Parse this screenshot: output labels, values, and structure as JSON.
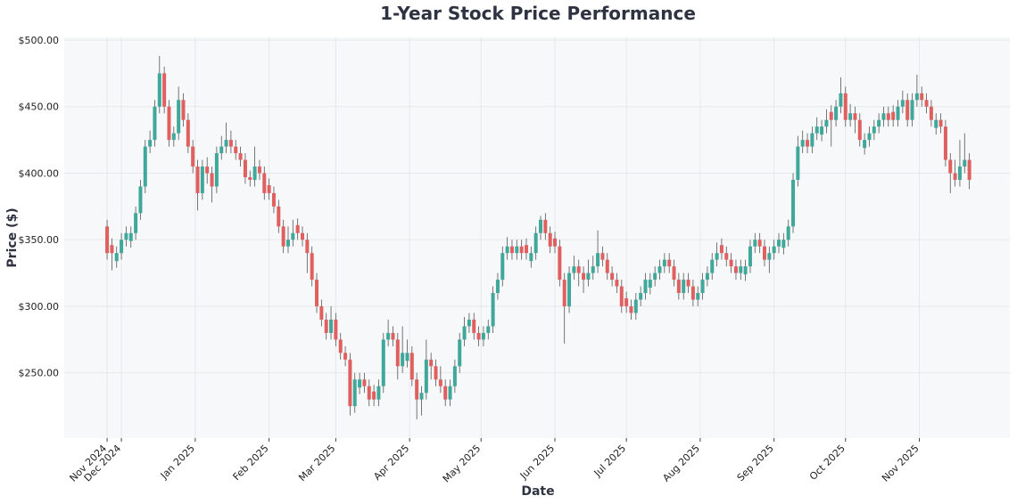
{
  "chart_data": {
    "type": "candlestick",
    "title": "1-Year Stock Price Performance",
    "x_label": "Date",
    "y_label": "Price ($)",
    "up_color": "#3fa89b",
    "down_color": "#e0605f",
    "grid": true,
    "xlim": [
      -24,
      373
    ],
    "xticks": [
      {
        "value": -6,
        "label": "Nov 2024"
      },
      {
        "value": 0,
        "label": "Dec 2024"
      },
      {
        "value": 31,
        "label": "Jan 2025"
      },
      {
        "value": 62,
        "label": "Feb 2025"
      },
      {
        "value": 90,
        "label": "Mar 2025"
      },
      {
        "value": 121,
        "label": "Apr 2025"
      },
      {
        "value": 151,
        "label": "May 2025"
      },
      {
        "value": 182,
        "label": "Jun 2025"
      },
      {
        "value": 212,
        "label": "Jul 2025"
      },
      {
        "value": 243,
        "label": "Aug 2025"
      },
      {
        "value": 274,
        "label": "Sep 2025"
      },
      {
        "value": 304,
        "label": "Oct 2025"
      },
      {
        "value": 335,
        "label": "Nov 2025"
      }
    ],
    "ylim": [
      201,
      502
    ],
    "yticks": [
      {
        "value": 250,
        "label": "$250.00"
      },
      {
        "value": 300,
        "label": "$300.00"
      },
      {
        "value": 350,
        "label": "$350.00"
      },
      {
        "value": 400,
        "label": "$400.00"
      },
      {
        "value": 450,
        "label": "$450.00"
      },
      {
        "value": 500,
        "label": "$500.00"
      }
    ],
    "x": [
      -6,
      -4,
      -2,
      0,
      2,
      4,
      6,
      8,
      10,
      12,
      14,
      16,
      18,
      20,
      22,
      24,
      26,
      28,
      30,
      32,
      34,
      36,
      38,
      40,
      42,
      44,
      46,
      48,
      50,
      52,
      54,
      56,
      58,
      60,
      62,
      64,
      66,
      68,
      70,
      72,
      74,
      76,
      78,
      80,
      82,
      84,
      86,
      88,
      90,
      92,
      94,
      96,
      98,
      100,
      102,
      104,
      106,
      108,
      110,
      112,
      114,
      116,
      118,
      120,
      122,
      124,
      126,
      128,
      130,
      132,
      134,
      136,
      138,
      140,
      142,
      144,
      146,
      148,
      150,
      152,
      154,
      156,
      158,
      160,
      162,
      164,
      166,
      168,
      170,
      172,
      174,
      176,
      178,
      180,
      182,
      184,
      186,
      188,
      190,
      192,
      194,
      196,
      198,
      200,
      202,
      204,
      206,
      208,
      210,
      212,
      214,
      216,
      218,
      220,
      222,
      224,
      226,
      228,
      230,
      232,
      234,
      236,
      238,
      240,
      242,
      244,
      246,
      248,
      250,
      252,
      254,
      256,
      258,
      260,
      262,
      264,
      266,
      268,
      270,
      272,
      274,
      276,
      278,
      280,
      282,
      284,
      286,
      288,
      290,
      292,
      294,
      296,
      298,
      300,
      302,
      304,
      306,
      308,
      310,
      312,
      314,
      316,
      318,
      320,
      322,
      324,
      326,
      328,
      330,
      332,
      334,
      336,
      338,
      340,
      342,
      344,
      346,
      348,
      350,
      352,
      354,
      356
    ],
    "open": [
      360,
      346,
      334,
      340,
      350,
      349,
      355,
      370,
      390,
      420,
      425,
      450,
      475,
      450,
      425,
      430,
      455,
      440,
      420,
      405,
      385,
      405,
      400,
      390,
      415,
      420,
      425,
      420,
      415,
      410,
      397,
      395,
      405,
      400,
      391,
      385,
      375,
      360,
      345,
      350,
      361,
      355,
      350,
      340,
      320,
      300,
      290,
      280,
      290,
      275,
      265,
      260,
      225,
      239,
      245,
      240,
      236,
      230,
      240,
      275,
      280,
      275,
      255,
      259,
      265,
      245,
      230,
      235,
      260,
      255,
      245,
      240,
      230,
      240,
      255,
      275,
      285,
      290,
      280,
      275,
      280,
      285,
      310,
      320,
      340,
      345,
      340,
      345,
      346,
      334,
      340,
      355,
      365,
      355,
      351,
      345,
      320,
      300,
      325,
      330,
      325,
      320,
      325,
      330,
      340,
      335,
      325,
      320,
      315,
      306,
      300,
      295,
      305,
      310,
      314,
      320,
      325,
      330,
      335,
      330,
      320,
      310,
      320,
      315,
      305,
      310,
      320,
      325,
      335,
      346,
      340,
      335,
      330,
      325,
      324,
      330,
      345,
      350,
      345,
      335,
      340,
      345,
      344,
      350,
      360,
      395,
      420,
      425,
      420,
      430,
      429,
      435,
      446,
      440,
      450,
      460,
      440,
      445,
      440,
      419,
      425,
      430,
      435,
      440,
      445,
      446,
      440,
      450,
      455,
      440,
      455,
      460,
      455,
      450,
      434,
      440,
      435,
      410,
      400,
      395,
      405,
      410
    ],
    "high": [
      365,
      351,
      345,
      355,
      360,
      360,
      375,
      395,
      425,
      432,
      455,
      488,
      480,
      455,
      435,
      465,
      460,
      445,
      425,
      410,
      410,
      412,
      405,
      420,
      428,
      438,
      432,
      425,
      420,
      415,
      402,
      420,
      410,
      405,
      396,
      390,
      380,
      365,
      360,
      365,
      366,
      360,
      355,
      345,
      325,
      305,
      295,
      300,
      295,
      280,
      270,
      265,
      250,
      250,
      250,
      245,
      241,
      245,
      280,
      290,
      285,
      280,
      285,
      275,
      270,
      250,
      240,
      275,
      265,
      260,
      255,
      245,
      245,
      260,
      280,
      292,
      295,
      295,
      285,
      285,
      290,
      315,
      325,
      345,
      352,
      350,
      350,
      350,
      351,
      345,
      360,
      368,
      370,
      360,
      356,
      350,
      325,
      330,
      338,
      335,
      330,
      335,
      338,
      357,
      345,
      340,
      330,
      325,
      320,
      311,
      305,
      310,
      315,
      325,
      325,
      330,
      335,
      340,
      340,
      335,
      325,
      325,
      325,
      320,
      315,
      325,
      330,
      340,
      348,
      351,
      345,
      340,
      335,
      335,
      335,
      350,
      355,
      355,
      350,
      345,
      350,
      355,
      355,
      365,
      400,
      428,
      432,
      430,
      435,
      442,
      440,
      448,
      451,
      455,
      472,
      465,
      452,
      450,
      445,
      430,
      435,
      440,
      445,
      450,
      450,
      451,
      455,
      462,
      460,
      460,
      474,
      465,
      460,
      455,
      445,
      445,
      440,
      415,
      410,
      425,
      430,
      415
    ],
    "low": [
      335,
      327,
      329,
      335,
      345,
      344,
      350,
      365,
      385,
      415,
      420,
      445,
      445,
      420,
      420,
      425,
      435,
      415,
      400,
      372,
      380,
      392,
      378,
      385,
      410,
      415,
      415,
      410,
      405,
      392,
      390,
      390,
      395,
      380,
      380,
      370,
      355,
      340,
      340,
      345,
      350,
      345,
      325,
      315,
      295,
      285,
      275,
      275,
      270,
      260,
      255,
      218,
      220,
      234,
      235,
      225,
      225,
      225,
      235,
      270,
      270,
      245,
      250,
      254,
      240,
      215,
      218,
      230,
      245,
      240,
      235,
      225,
      225,
      235,
      250,
      270,
      280,
      275,
      270,
      270,
      275,
      280,
      305,
      315,
      335,
      335,
      335,
      335,
      335,
      329,
      335,
      350,
      350,
      340,
      340,
      315,
      272,
      295,
      320,
      315,
      310,
      315,
      320,
      325,
      330,
      320,
      315,
      310,
      295,
      295,
      290,
      290,
      300,
      305,
      309,
      315,
      320,
      325,
      325,
      315,
      305,
      305,
      310,
      300,
      300,
      305,
      315,
      320,
      330,
      335,
      330,
      325,
      320,
      320,
      319,
      325,
      340,
      340,
      330,
      325,
      335,
      340,
      339,
      345,
      355,
      390,
      415,
      415,
      415,
      425,
      424,
      430,
      420,
      435,
      445,
      435,
      435,
      430,
      420,
      414,
      420,
      425,
      430,
      435,
      435,
      435,
      435,
      445,
      435,
      435,
      450,
      450,
      445,
      435,
      429,
      430,
      405,
      385,
      390,
      390,
      400,
      388
    ],
    "close": [
      340,
      340,
      340,
      350,
      355,
      355,
      370,
      390,
      420,
      425,
      450,
      475,
      450,
      425,
      430,
      455,
      440,
      420,
      405,
      385,
      405,
      400,
      390,
      415,
      420,
      425,
      420,
      415,
      410,
      397,
      395,
      405,
      400,
      385,
      385,
      375,
      360,
      345,
      350,
      355,
      355,
      350,
      340,
      320,
      300,
      290,
      280,
      290,
      275,
      265,
      260,
      225,
      245,
      245,
      240,
      230,
      230,
      240,
      275,
      280,
      275,
      255,
      265,
      265,
      245,
      230,
      235,
      260,
      255,
      245,
      240,
      230,
      240,
      255,
      275,
      285,
      290,
      280,
      275,
      280,
      285,
      310,
      320,
      340,
      345,
      340,
      345,
      340,
      340,
      340,
      355,
      365,
      355,
      345,
      345,
      320,
      300,
      325,
      330,
      325,
      320,
      325,
      330,
      340,
      335,
      325,
      320,
      315,
      300,
      300,
      295,
      305,
      310,
      320,
      320,
      325,
      330,
      335,
      330,
      320,
      310,
      320,
      315,
      305,
      310,
      320,
      325,
      335,
      340,
      340,
      335,
      330,
      325,
      330,
      330,
      345,
      350,
      345,
      335,
      340,
      345,
      350,
      350,
      360,
      395,
      420,
      425,
      420,
      430,
      435,
      435,
      440,
      440,
      450,
      460,
      440,
      445,
      440,
      425,
      425,
      430,
      435,
      440,
      445,
      440,
      440,
      450,
      455,
      440,
      455,
      460,
      455,
      450,
      440,
      440,
      435,
      410,
      400,
      395,
      405,
      410,
      395
    ]
  }
}
